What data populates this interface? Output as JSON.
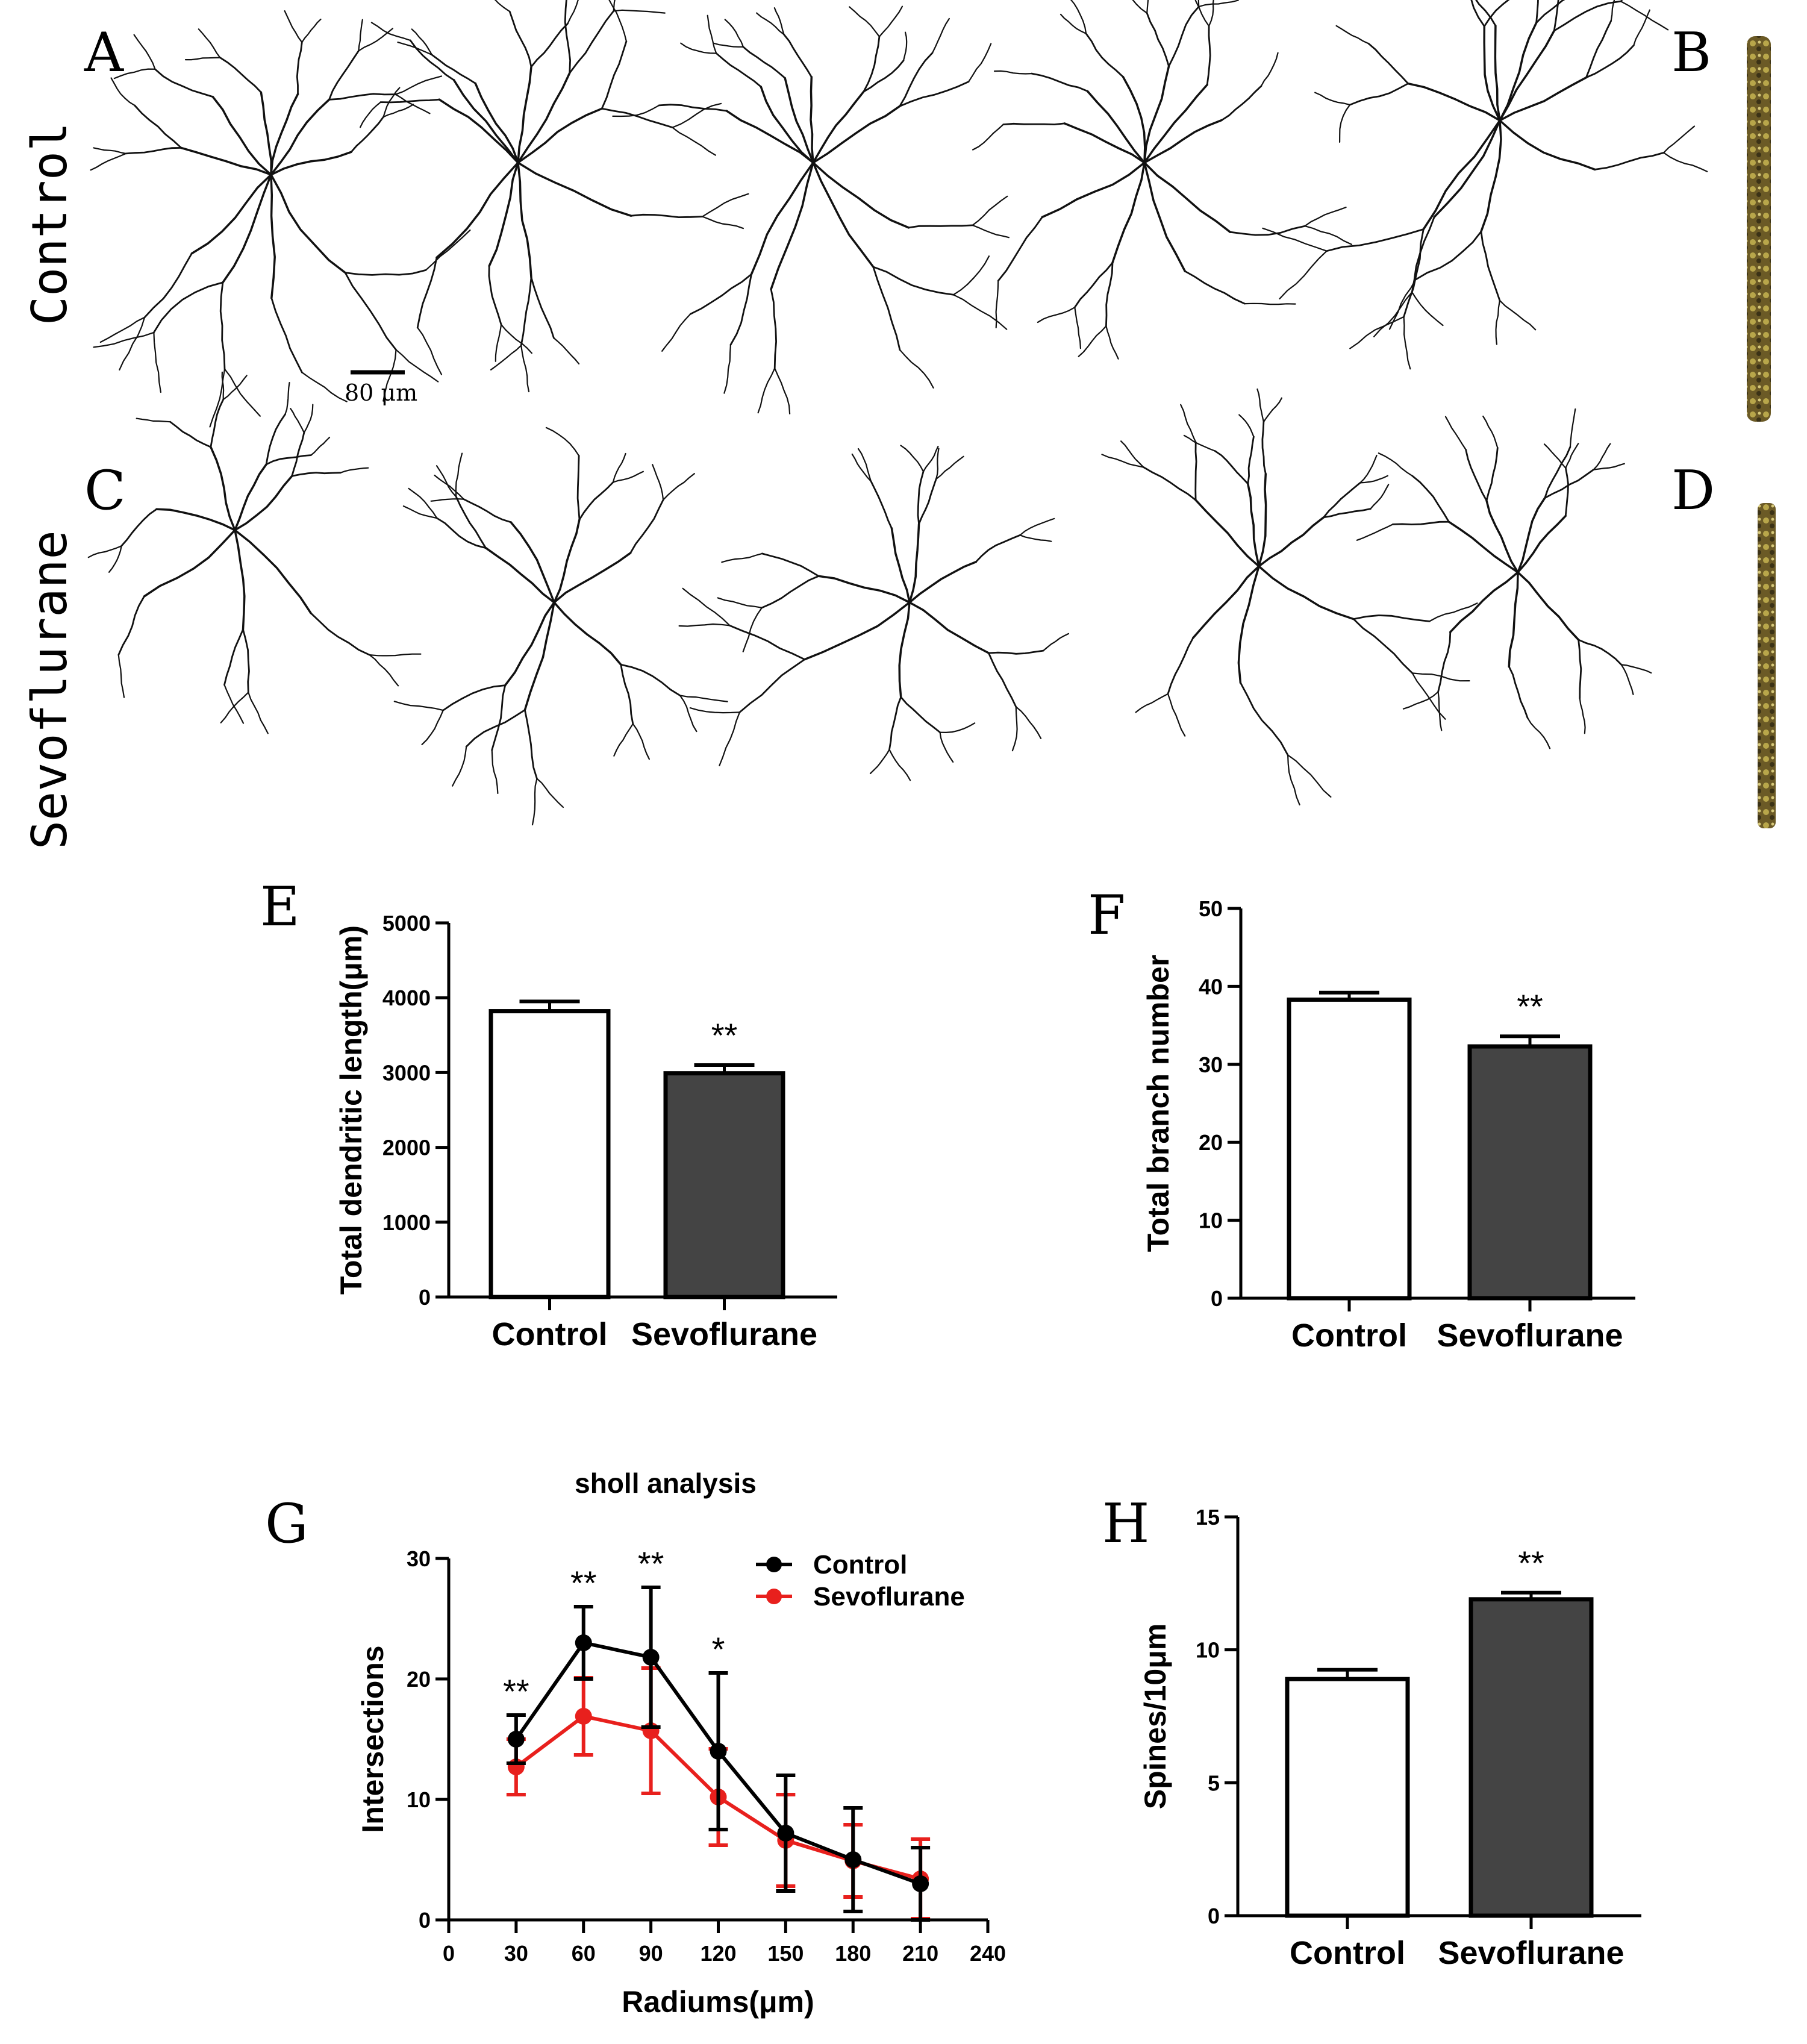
{
  "panels": {
    "A": "A",
    "B": "B",
    "C": "C",
    "D": "D",
    "E": "E",
    "F": "F",
    "G": "G",
    "H": "H"
  },
  "row_labels": {
    "control": "Control",
    "sevoflurane": "Sevoflurane"
  },
  "scale_bar": "80 μm",
  "colors": {
    "control_bar": "#ffffff",
    "sevo_bar": "#444444",
    "control_line": "#000000",
    "sevo_line": "#e8201d"
  },
  "chart_data": [
    {
      "panel": "E",
      "type": "bar",
      "categories": [
        "Control",
        "Sevoflurane"
      ],
      "values": [
        3820,
        2990
      ],
      "errors": [
        130,
        110
      ],
      "significance": [
        "",
        "**"
      ],
      "ylabel": "Total dendritic length(μm)",
      "ylim": [
        0,
        5000
      ],
      "yticks": [
        0,
        1000,
        2000,
        3000,
        4000,
        5000
      ]
    },
    {
      "panel": "F",
      "type": "bar",
      "categories": [
        "Control",
        "Sevoflurane"
      ],
      "values": [
        38.3,
        32.3
      ],
      "errors": [
        0.9,
        1.3
      ],
      "significance": [
        "",
        "**"
      ],
      "ylabel": "Total branch number",
      "ylim": [
        0,
        50
      ],
      "yticks": [
        0,
        10,
        20,
        30,
        40,
        50
      ]
    },
    {
      "panel": "G",
      "type": "line",
      "title": "sholl analysis",
      "xlabel": "Radiums(μm)",
      "ylabel": "Intersections",
      "x": [
        30,
        60,
        90,
        120,
        150,
        180,
        210
      ],
      "xlim": [
        0,
        240
      ],
      "xticks": [
        0,
        30,
        60,
        90,
        120,
        150,
        180,
        210,
        240
      ],
      "ylim": [
        0,
        30
      ],
      "yticks": [
        0,
        10,
        20,
        30
      ],
      "legend_position": "top-right",
      "series": [
        {
          "name": "Control",
          "values": [
            15.0,
            23.0,
            21.8,
            14.0,
            7.2,
            5.0,
            3.0
          ],
          "errors": [
            2.0,
            3.0,
            5.8,
            6.5,
            4.8,
            4.3,
            3.0
          ]
        },
        {
          "name": "Sevoflurane",
          "values": [
            12.7,
            16.9,
            15.7,
            10.2,
            6.6,
            4.9,
            3.4
          ],
          "errors": [
            2.3,
            3.2,
            5.2,
            4.0,
            3.8,
            3.0,
            3.3
          ]
        }
      ],
      "significance": [
        "**",
        "**",
        "**",
        "*",
        "",
        "",
        ""
      ]
    },
    {
      "panel": "H",
      "type": "bar",
      "categories": [
        "Control",
        "Sevoflurane"
      ],
      "values": [
        8.9,
        11.9
      ],
      "errors": [
        0.35,
        0.25
      ],
      "significance": [
        "",
        "**"
      ],
      "ylabel": "Spines/10μm",
      "ylim": [
        0,
        15
      ],
      "yticks": [
        0,
        5,
        10,
        15
      ]
    }
  ]
}
